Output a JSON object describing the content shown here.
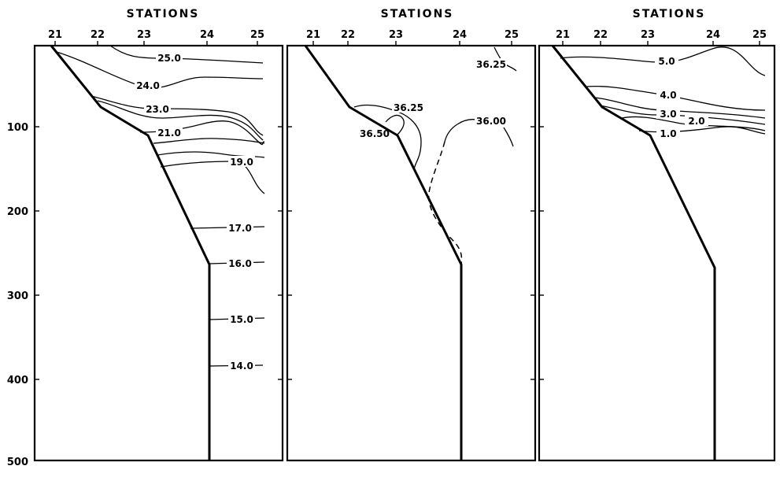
{
  "chart_data": [
    {
      "type": "line",
      "title": "STATIONS",
      "x_ticks": [
        "21",
        "22",
        "23",
        "24",
        "25"
      ],
      "y_ticks": [
        "100",
        "200",
        "300",
        "400",
        "500"
      ],
      "ylim": [
        500,
        0
      ],
      "contours": [
        {
          "label": "25.0"
        },
        {
          "label": "24.0"
        },
        {
          "label": "23.0"
        },
        {
          "label": "21.0"
        },
        {
          "label": "19.0"
        },
        {
          "label": "17.0"
        },
        {
          "label": "16.0"
        },
        {
          "label": "15.0"
        },
        {
          "label": "14.0"
        }
      ]
    },
    {
      "type": "line",
      "title": "STATIONS",
      "x_ticks": [
        "21",
        "22",
        "23",
        "24",
        "25"
      ],
      "contours": [
        {
          "label": "36.25"
        },
        {
          "label": "36.25"
        },
        {
          "label": "36.50"
        },
        {
          "label": "36.00"
        }
      ]
    },
    {
      "type": "line",
      "title": "STATIONS",
      "x_ticks": [
        "21",
        "22",
        "23",
        "24",
        "25"
      ],
      "contours": [
        {
          "label": "5.0"
        },
        {
          "label": "4.0"
        },
        {
          "label": "3.0"
        },
        {
          "label": "2.0"
        },
        {
          "label": "1.0"
        }
      ]
    }
  ]
}
